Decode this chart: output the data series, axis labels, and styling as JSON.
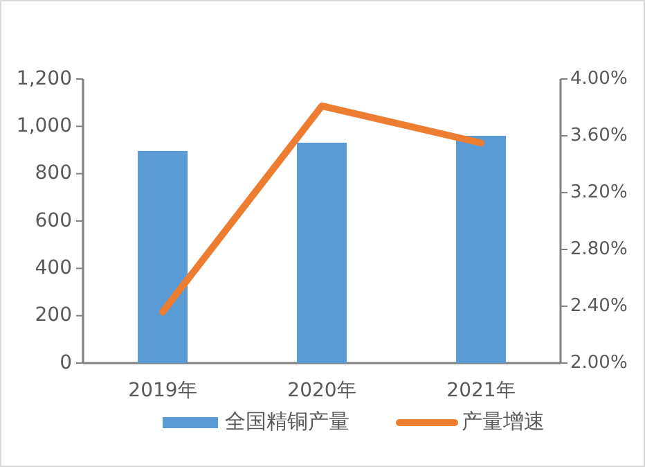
{
  "chart_data": {
    "type": "bar",
    "categories": [
      "2019年",
      "2020年",
      "2021年"
    ],
    "series": [
      {
        "name": "全国精铜产量",
        "color": "#5b9bd5",
        "values": [
          896,
          931,
          960
        ]
      },
      {
        "name": "产量增速",
        "type": "line",
        "axis": "y2",
        "color": "#ed7d31",
        "values": [
          2.36,
          3.81,
          3.55
        ]
      }
    ],
    "ylim": [
      0,
      1200
    ],
    "yticks": [
      0,
      200,
      400,
      600,
      800,
      {
        "value": 1000,
        "label": "1,000"
      },
      {
        "value": 1200,
        "label": "1,200"
      }
    ],
    "y2lim": [
      2,
      4
    ],
    "y2ticks": [
      {
        "value": 2,
        "label": "2.00%"
      },
      {
        "value": 2.4,
        "label": "2.40%"
      },
      {
        "value": 2.8,
        "label": "2.80%"
      },
      {
        "value": 3.2,
        "label": "3.20%"
      },
      {
        "value": 3.6,
        "label": "3.60%"
      },
      {
        "value": 4,
        "label": "4.00%"
      }
    ],
    "legend": "bottom",
    "grid": false
  }
}
